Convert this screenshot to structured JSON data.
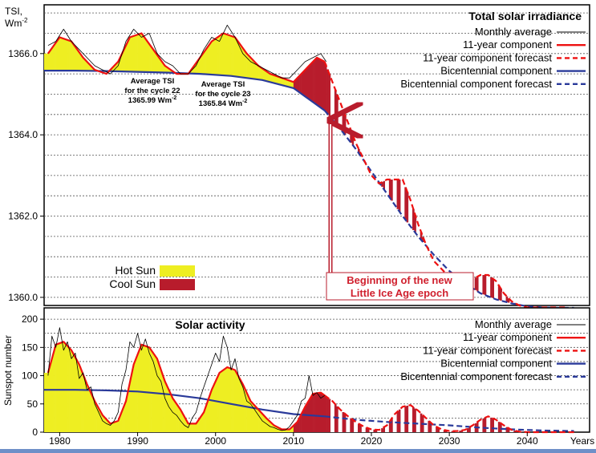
{
  "chart_data": [
    {
      "type": "line",
      "title": "Total solar irradiance",
      "ylabel": "TSI, Wm-2",
      "ylabel_line1": "TSI,",
      "ylabel_line2": "Wm",
      "ylabel_sup": "-2",
      "ylim": [
        1359.8,
        1367.2
      ],
      "xlim": [
        1978,
        2048
      ],
      "yticks": [
        {
          "value": 1366.0,
          "label": "1366.0"
        },
        {
          "value": 1364.0,
          "label": "1364.0"
        },
        {
          "value": 1362.0,
          "label": "1362.0"
        },
        {
          "value": 1360.0,
          "label": "1360.0"
        }
      ],
      "grid": "horizontal dotted, every 0.5",
      "legend_position": "top-right",
      "series": [
        {
          "name": "Monthly average",
          "color": "#000000",
          "style": "thin solid",
          "x": [
            1978.5,
            1979.5,
            1980.5,
            1981.5,
            1982.5,
            1983.5,
            1984.5,
            1985.5,
            1986.5,
            1987.5,
            1988.5,
            1989.5,
            1990.5,
            1991.5,
            1992.5,
            1993.5,
            1994.5,
            1995.5,
            1996.5,
            1997.5,
            1998.5,
            1999.5,
            2000.5,
            2001.5,
            2002.5,
            2003.5,
            2004.5,
            2005.5,
            2006.5,
            2007.5,
            2008.5,
            2009.5,
            2010.5,
            2011.5,
            2012.5,
            2013.5,
            2014.2
          ],
          "y": [
            1366.2,
            1366.3,
            1366.6,
            1366.3,
            1366.1,
            1365.9,
            1365.7,
            1365.6,
            1365.5,
            1365.7,
            1366.3,
            1366.6,
            1366.4,
            1366.5,
            1366.0,
            1365.8,
            1365.7,
            1365.5,
            1365.5,
            1365.7,
            1366.1,
            1366.4,
            1366.3,
            1366.7,
            1366.4,
            1366.0,
            1365.8,
            1365.7,
            1365.6,
            1365.5,
            1365.4,
            1365.4,
            1365.6,
            1365.8,
            1365.9,
            1366.0,
            1365.8
          ]
        },
        {
          "name": "11-year component",
          "color": "#ee1111",
          "style": "solid",
          "x": [
            1978.5,
            1980,
            1981.5,
            1983,
            1984.5,
            1986,
            1987.5,
            1989,
            1990.5,
            1992,
            1993.5,
            1995,
            1996.5,
            1998,
            1999.5,
            2001,
            2002.5,
            2004,
            2005.5,
            2007,
            2008.5,
            2010,
            2011.5,
            2013,
            2014
          ],
          "y": [
            1366.0,
            1366.4,
            1366.3,
            1365.9,
            1365.6,
            1365.5,
            1365.8,
            1366.4,
            1366.5,
            1366.1,
            1365.7,
            1365.5,
            1365.5,
            1365.9,
            1366.3,
            1366.5,
            1366.4,
            1366.0,
            1365.7,
            1365.5,
            1365.4,
            1365.3,
            1365.6,
            1365.9,
            1365.8
          ]
        },
        {
          "name": "11-year component forecast",
          "color": "#ee1111",
          "style": "dashed",
          "x": [
            2014,
            2015,
            2016,
            2017,
            2018,
            2019,
            2020,
            2021,
            2022,
            2023,
            2024,
            2025,
            2026,
            2027,
            2028,
            2029,
            2030,
            2031,
            2032,
            2033,
            2034,
            2035,
            2036,
            2037,
            2038,
            2039,
            2040,
            2041,
            2042,
            2043,
            2044,
            2045
          ],
          "y": [
            1365.8,
            1365.3,
            1364.8,
            1364.3,
            1363.8,
            1363.4,
            1363.0,
            1362.8,
            1362.9,
            1362.9,
            1362.9,
            1362.4,
            1361.8,
            1361.3,
            1360.9,
            1360.7,
            1360.5,
            1360.4,
            1360.3,
            1360.45,
            1360.55,
            1360.55,
            1360.4,
            1360.1,
            1359.9,
            1359.8,
            1359.75,
            1359.75,
            1359.75,
            1359.75,
            1359.75,
            1359.75
          ]
        },
        {
          "name": "Bicentennial component",
          "color": "#2a3a9a",
          "style": "solid",
          "x": [
            1978,
            1982,
            1986,
            1990,
            1994,
            1998,
            2002,
            2006,
            2010,
            2014
          ],
          "y": [
            1365.58,
            1365.58,
            1365.57,
            1365.55,
            1365.53,
            1365.5,
            1365.45,
            1365.35,
            1365.15,
            1364.6
          ]
        },
        {
          "name": "Bicentennial component forecast",
          "color": "#2a3a9a",
          "style": "dashed",
          "x": [
            2014,
            2016,
            2018,
            2020,
            2022,
            2024,
            2026,
            2028,
            2030,
            2032,
            2034,
            2036,
            2038,
            2040,
            2042,
            2044,
            2046
          ],
          "y": [
            1364.6,
            1364.15,
            1363.65,
            1363.1,
            1362.55,
            1362.0,
            1361.5,
            1361.05,
            1360.65,
            1360.35,
            1360.1,
            1359.95,
            1359.85,
            1359.78,
            1359.75,
            1359.74,
            1359.74
          ]
        }
      ],
      "annotations": {
        "cycle22": {
          "line1": "Average TSI",
          "line2": "for the cycle 22",
          "value": "1365.99 Wm",
          "sup": "-2"
        },
        "cycle23": {
          "line1": "Average TSI",
          "line2": "for the cycle 23",
          "value": "1365.84 Wm",
          "sup": "-2"
        },
        "lia_line1": "Beginning of the new",
        "lia_line2": "Little Ice Age epoch",
        "arrow_year": 2014.5,
        "arrow_value": 1364.5
      },
      "shading_legend": [
        {
          "label": "Hot Sun",
          "color": "#eeee22"
        },
        {
          "label": "Cool Sun",
          "color": "#b81c2c"
        }
      ],
      "colors": {
        "hot": "#eeee22",
        "cool": "#b81c2c",
        "red": "#ee1111",
        "blue": "#2a3a9a"
      }
    },
    {
      "type": "line",
      "title": "Solar activity",
      "ylabel": "Sunspot number",
      "ylim": [
        0,
        220
      ],
      "xlim": [
        1978,
        2048
      ],
      "yticks": [
        0,
        50,
        100,
        150,
        200
      ],
      "xticks": [
        {
          "value": 1980,
          "label": "1980"
        },
        {
          "value": 1990,
          "label": "1990"
        },
        {
          "value": 2000,
          "label": "2000"
        },
        {
          "value": 2010,
          "label": "2010"
        },
        {
          "value": 2020,
          "label": "2020"
        },
        {
          "value": 2030,
          "label": "2030"
        },
        {
          "value": 2040,
          "label": "2040"
        }
      ],
      "xunit": "Years",
      "grid": "horizontal dotted, every 25",
      "legend_position": "top-right",
      "series": [
        {
          "name": "Monthly average",
          "color": "#000000",
          "style": "thin solid",
          "x": [
            1978.5,
            1979,
            1979.5,
            1980,
            1980.5,
            1981,
            1981.5,
            1982,
            1982.5,
            1983,
            1983.5,
            1984,
            1984.5,
            1985,
            1985.5,
            1986,
            1986.5,
            1987,
            1987.5,
            1988,
            1988.5,
            1989,
            1989.5,
            1990,
            1990.5,
            1991,
            1991.5,
            1992,
            1992.5,
            1993,
            1993.5,
            1994,
            1994.5,
            1995,
            1995.5,
            1996,
            1996.5,
            1997,
            1997.5,
            1998,
            1998.5,
            1999,
            1999.5,
            2000,
            2000.5,
            2001,
            2001.5,
            2002,
            2002.5,
            2003,
            2003.5,
            2004,
            2004.5,
            2005,
            2005.5,
            2006,
            2006.5,
            2007,
            2007.5,
            2008,
            2008.5,
            2009,
            2009.5,
            2010,
            2010.5,
            2011,
            2011.5,
            2012,
            2012.5,
            2013,
            2013.5,
            2014
          ],
          "y": [
            100,
            170,
            150,
            185,
            145,
            160,
            130,
            140,
            95,
            105,
            75,
            80,
            50,
            35,
            20,
            15,
            12,
            20,
            35,
            85,
            110,
            160,
            150,
            175,
            145,
            165,
            140,
            125,
            100,
            90,
            60,
            45,
            35,
            30,
            20,
            12,
            8,
            25,
            35,
            60,
            80,
            100,
            120,
            140,
            125,
            170,
            150,
            110,
            130,
            95,
            80,
            55,
            50,
            40,
            30,
            20,
            15,
            10,
            8,
            5,
            3,
            4,
            10,
            20,
            30,
            55,
            60,
            100,
            65,
            70,
            60,
            65
          ]
        },
        {
          "name": "11-year component",
          "color": "#ee1111",
          "style": "solid",
          "x": [
            1978.5,
            1979.5,
            1980.5,
            1981.5,
            1982.5,
            1983.5,
            1984.5,
            1985.5,
            1986.5,
            1987.5,
            1988.5,
            1989.5,
            1990.5,
            1991.5,
            1992.5,
            1993.5,
            1994.5,
            1995.5,
            1996.5,
            1997.5,
            1998.5,
            1999.5,
            2000.5,
            2001.5,
            2002.5,
            2003.5,
            2004.5,
            2005.5,
            2006.5,
            2007.5,
            2008.5,
            2009.5,
            2010.5,
            2011.5,
            2012.5,
            2013.5,
            2014
          ],
          "y": [
            105,
            155,
            160,
            145,
            120,
            85,
            55,
            30,
            15,
            20,
            55,
            120,
            155,
            150,
            130,
            90,
            60,
            40,
            15,
            15,
            35,
            75,
            105,
            115,
            110,
            85,
            55,
            40,
            25,
            12,
            5,
            5,
            18,
            45,
            68,
            70,
            65
          ]
        },
        {
          "name": "11-year component forecast",
          "color": "#ee1111",
          "style": "dashed",
          "x": [
            2014,
            2015,
            2016,
            2017,
            2018,
            2019,
            2020,
            2021,
            2022,
            2023,
            2024,
            2025,
            2026,
            2027,
            2028,
            2029,
            2030,
            2031,
            2032,
            2033,
            2034,
            2035,
            2036,
            2037,
            2038,
            2039,
            2040,
            2041,
            2042,
            2043,
            2044,
            2045,
            2046
          ],
          "y": [
            65,
            55,
            40,
            28,
            18,
            10,
            5,
            4,
            12,
            32,
            45,
            48,
            38,
            25,
            12,
            5,
            2,
            2,
            4,
            12,
            22,
            28,
            22,
            12,
            4,
            1,
            0,
            0,
            0,
            0,
            0,
            0,
            0
          ]
        },
        {
          "name": "Bicentennial component",
          "color": "#2a3a9a",
          "style": "solid",
          "x": [
            1978,
            1982,
            1986,
            1990,
            1994,
            1998,
            2002,
            2006,
            2010,
            2014
          ],
          "y": [
            75,
            75,
            74,
            72,
            67,
            60,
            50,
            40,
            32,
            28
          ]
        },
        {
          "name": "Bicentennial component forecast",
          "color": "#2a3a9a",
          "style": "dashed",
          "x": [
            2014,
            2018,
            2022,
            2026,
            2030,
            2034,
            2038,
            2042,
            2046
          ],
          "y": [
            28,
            22,
            18,
            15,
            12,
            8,
            5,
            3,
            2
          ]
        }
      ],
      "colors": {
        "hot": "#eeee22",
        "cool": "#b81c2c",
        "red": "#ee1111",
        "blue": "#2a3a9a"
      }
    }
  ]
}
